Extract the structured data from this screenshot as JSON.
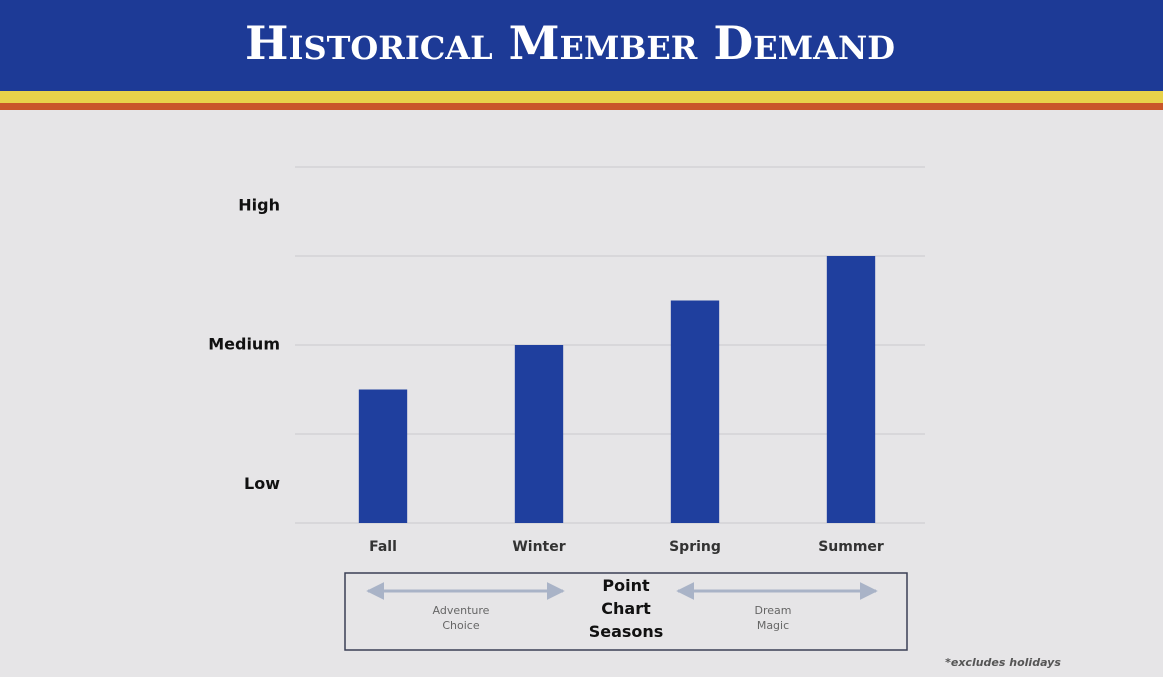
{
  "chart_data": {
    "type": "bar",
    "title": "Historical Member Demand",
    "categories": [
      "Fall",
      "Winter",
      "Spring",
      "Summer"
    ],
    "values": [
      1.5,
      2,
      2.5,
      3
    ],
    "color": "#1f3f9e",
    "ylim": [
      0,
      4
    ],
    "yticks": [
      {
        "value": 0.43,
        "label": "Low"
      },
      {
        "value": 2,
        "label": "Medium"
      },
      {
        "value": 3.56,
        "label": "High"
      }
    ],
    "ygrid": [
      0,
      1,
      2,
      3,
      4
    ],
    "grid": true,
    "seasons_label": [
      "Point",
      "Chart",
      "Seasons"
    ],
    "season_groups": [
      {
        "label": [
          "Adventure",
          "Choice"
        ],
        "from": "Fall",
        "to": "Winter"
      },
      {
        "label": [
          "Dream",
          "Magic"
        ],
        "from": "Spring",
        "to": "Summer"
      }
    ],
    "footnote": "*excludes holidays"
  }
}
